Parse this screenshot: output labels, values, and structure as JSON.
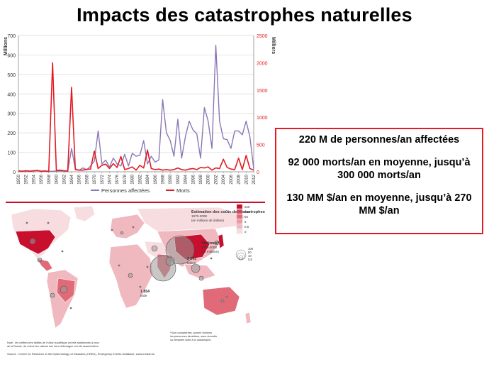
{
  "slide": {
    "title": "Impacts des catastrophes naturelles"
  },
  "stats": [
    "220 M de personnes/an affectées",
    "92 000 morts/an en moyenne, jusqu’à 300 000 morts/an",
    "130 MM $/an en moyenne, jusqu’à 270 MM $/an"
  ],
  "chart_data": {
    "type": "line",
    "left_axis_label": "Millions",
    "right_axis_label": "Milliers",
    "left_ylim": [
      0,
      700
    ],
    "left_ticks": [
      0,
      100,
      200,
      300,
      400,
      500,
      600,
      700
    ],
    "right_ylim": [
      0,
      2500
    ],
    "right_ticks": [
      0,
      500,
      1000,
      1500,
      2000,
      2500
    ],
    "x_ticks": [
      "1950",
      "1952",
      "1954",
      "1956",
      "1958",
      "1960",
      "1962",
      "1964",
      "1966",
      "1968",
      "1970",
      "1972",
      "1974",
      "1976",
      "1978",
      "1980",
      "1982",
      "1984",
      "1986",
      "1988",
      "1990",
      "1992",
      "1994",
      "1996",
      "1998",
      "2000",
      "2002",
      "2004",
      "2006",
      "2008",
      "2010",
      "2012"
    ],
    "x": [
      1950,
      1951,
      1952,
      1953,
      1954,
      1955,
      1956,
      1957,
      1958,
      1959,
      1960,
      1961,
      1962,
      1963,
      1964,
      1965,
      1966,
      1967,
      1968,
      1969,
      1970,
      1971,
      1972,
      1973,
      1974,
      1975,
      1976,
      1977,
      1978,
      1979,
      1980,
      1981,
      1982,
      1983,
      1984,
      1985,
      1986,
      1987,
      1988,
      1989,
      1990,
      1991,
      1992,
      1993,
      1994,
      1995,
      1996,
      1997,
      1998,
      1999,
      2000,
      2001,
      2002,
      2003,
      2004,
      2005,
      2006,
      2007,
      2008,
      2009,
      2010,
      2011,
      2012
    ],
    "series": [
      {
        "name": "Personnes affectées",
        "axis": "left",
        "color": "#8a78b5",
        "values": [
          5,
          3,
          4,
          2,
          5,
          6,
          3,
          4,
          2,
          3,
          4,
          5,
          3,
          2,
          120,
          15,
          8,
          20,
          10,
          30,
          55,
          210,
          40,
          60,
          25,
          70,
          40,
          30,
          90,
          30,
          95,
          80,
          85,
          160,
          40,
          80,
          50,
          60,
          370,
          200,
          160,
          80,
          270,
          70,
          180,
          260,
          215,
          195,
          70,
          330,
          260,
          120,
          650,
          260,
          170,
          165,
          120,
          210,
          210,
          190,
          260,
          180,
          15
        ]
      },
      {
        "name": "Morts",
        "axis": "right",
        "color": "#e31b23",
        "values": [
          15,
          10,
          20,
          12,
          18,
          25,
          10,
          15,
          8,
          2000,
          25,
          30,
          20,
          15,
          1550,
          40,
          30,
          30,
          45,
          50,
          380,
          60,
          120,
          140,
          60,
          150,
          80,
          280,
          40,
          60,
          90,
          30,
          120,
          70,
          400,
          60,
          40,
          50,
          30,
          40,
          30,
          40,
          70,
          40,
          30,
          50,
          60,
          40,
          80,
          70,
          90,
          30,
          70,
          60,
          230,
          80,
          50,
          40,
          250,
          40,
          300,
          60,
          30
        ]
      }
    ],
    "legend": [
      "Personnes affectées",
      "Morts"
    ],
    "legend_placement": "bottom"
  },
  "map": {
    "title": "Estimation des coûts des catastrophes,",
    "title_years": "1970-2008",
    "title_unit": "(en millions de dollars)",
    "cost_scale": [
      "520",
      "200",
      "50",
      "5",
      "0,5",
      "0"
    ],
    "victims_title": "Victimes*,",
    "victims_years": "1970-2008",
    "victims_unit": "(en millions)",
    "victim_scale": [
      "100",
      "50",
      "10",
      "0,5"
    ],
    "china_value": "2 543",
    "china_label": "Chine",
    "india_value": "1 854",
    "india_label": "Inde",
    "note_left_1": "Note : les chiffres très faibles de l’Union soviétique ont été additionnés à ceux",
    "note_left_2": "de la Russie, de même les valeurs des deux Allemagne ont été rassemblées.",
    "note_right_1": "*Sont considérées comme victimes",
    "note_right_2": "les personnes décédées, sans domicile",
    "note_right_3": "ou blessées suite à la catastrophe.",
    "source": "Source : Centre for Research of the Epidemiology of Disasters (CRED), Emergency Events Database, www.emdat.be",
    "colors": {
      "dark": "#c8102e",
      "mid": "#e06a78",
      "light": "#f0b8bf",
      "pale": "#f8dde0",
      "circle": "#9a9a9a"
    }
  }
}
